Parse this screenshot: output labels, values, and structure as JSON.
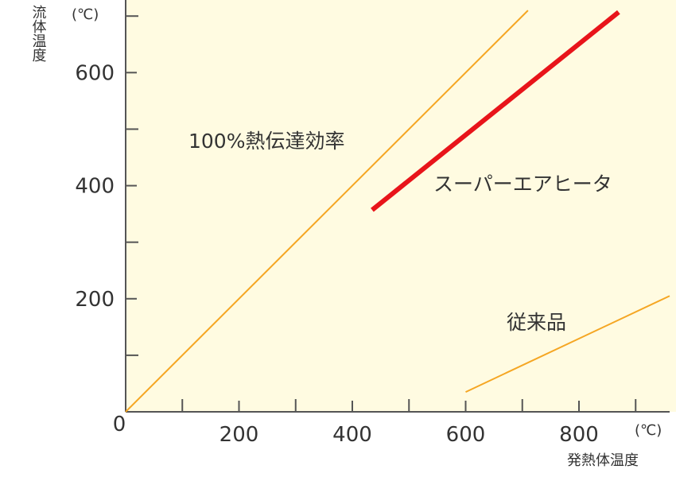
{
  "chart_data": {
    "type": "line",
    "title": "",
    "xlabel": "発熱体温度",
    "ylabel": "流体温度",
    "x_unit": "(℃)",
    "y_unit": "(℃)",
    "xlim": [
      0,
      960
    ],
    "ylim": [
      0,
      720
    ],
    "x_ticks": [
      0,
      200,
      400,
      600,
      800
    ],
    "x_tick_labels": [
      "0",
      "200",
      "400",
      "600",
      "800"
    ],
    "x_minor_ticks": [
      100,
      300,
      500,
      700,
      900
    ],
    "y_ticks": [
      200,
      400,
      600
    ],
    "y_tick_labels": [
      "200",
      "400",
      "600"
    ],
    "y_minor_ticks": [
      100,
      300,
      500,
      700
    ],
    "grid": false,
    "series": [
      {
        "name": "100%熱伝達効率",
        "x": [
          0,
          710
        ],
        "y": [
          0,
          710
        ],
        "color": "#f5a623",
        "width": 2
      },
      {
        "name": "スーパーエアヒータ",
        "x": [
          435,
          870
        ],
        "y": [
          357,
          707
        ],
        "color": "#e8141a",
        "width": 6
      },
      {
        "name": "従来品",
        "x": [
          600,
          960
        ],
        "y": [
          35,
          205
        ],
        "color": "#f5a623",
        "width": 2
      }
    ],
    "background_color": "#fffbe1"
  }
}
